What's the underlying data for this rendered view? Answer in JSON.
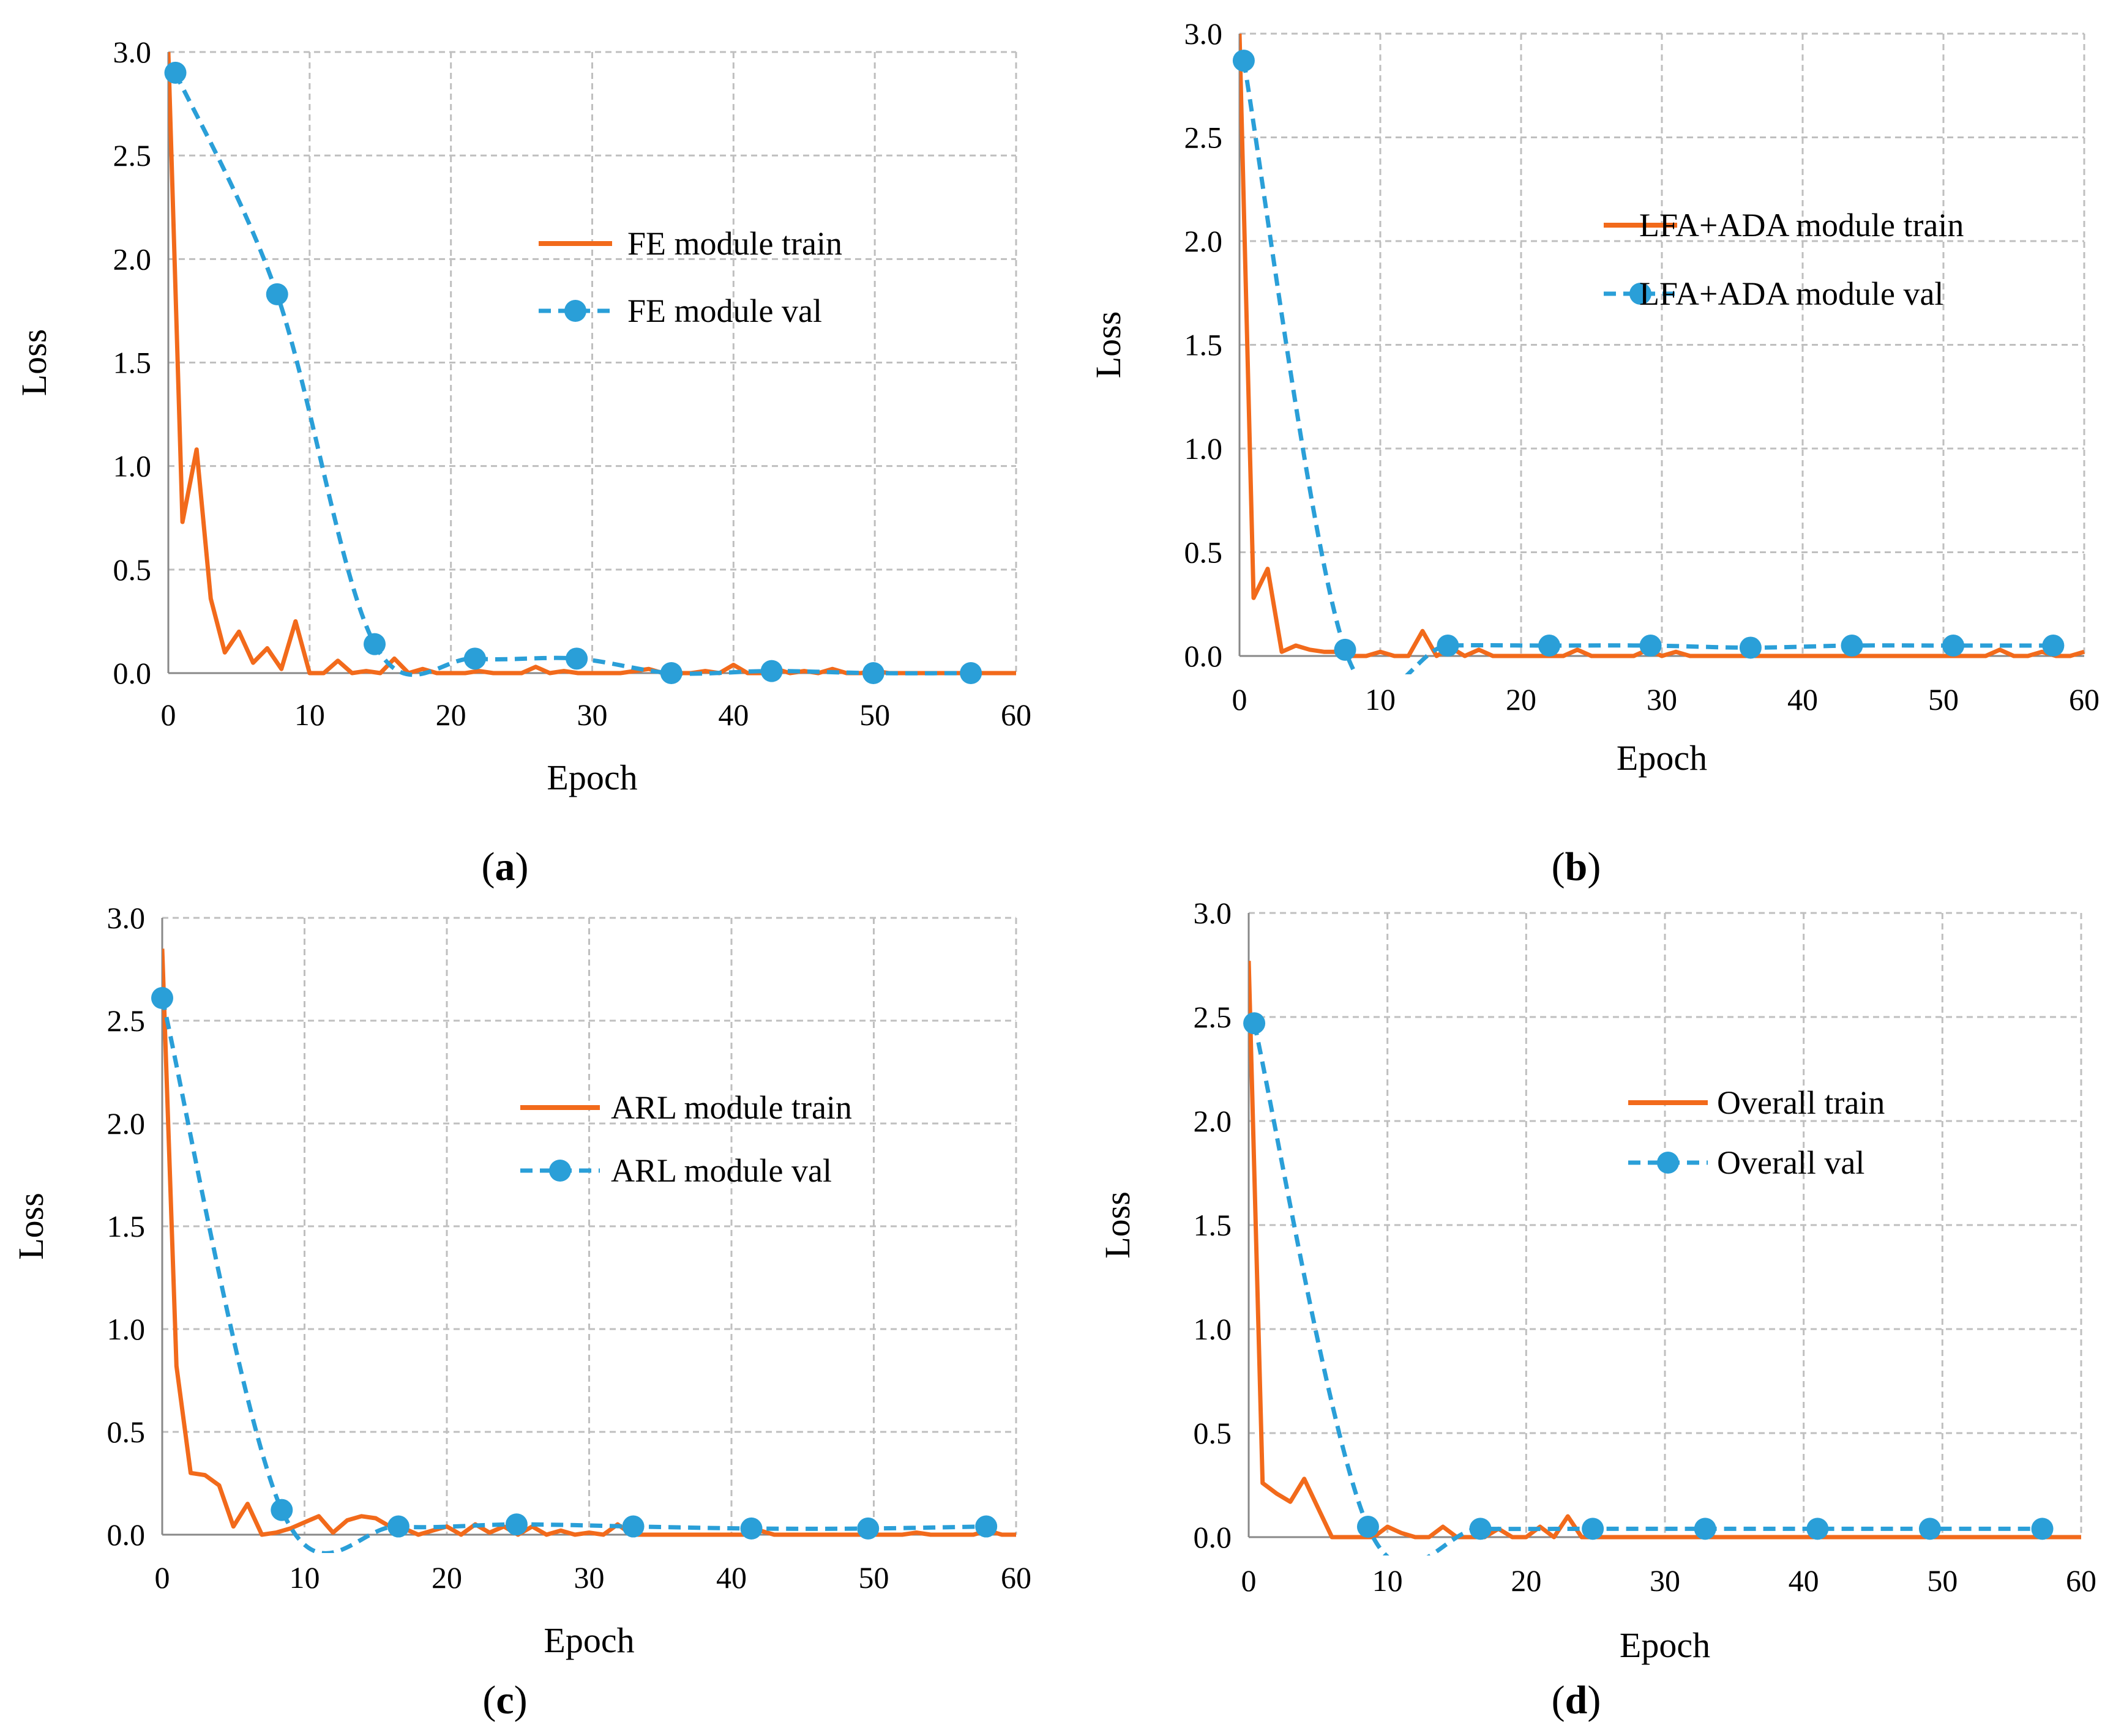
{
  "colors": {
    "train": "#F26A1B",
    "val": "#2A9FD8",
    "grid": "#BFBFBF",
    "axis": "#888888"
  },
  "chart_data": [
    {
      "type": "line",
      "panel": "a",
      "caption": "(a)",
      "caption_letter": "a",
      "xlabel": "Epoch",
      "ylabel": "Loss",
      "xlim": [
        0,
        60
      ],
      "ylim": [
        0,
        3
      ],
      "x_ticks": [
        "0",
        "10",
        "20",
        "30",
        "40",
        "50",
        "60"
      ],
      "y_ticks": [
        "0.0",
        "0.5",
        "1.0",
        "1.5",
        "2.0",
        "2.5",
        "3.0"
      ],
      "legend": "center-right",
      "series": [
        {
          "name": "FE module train",
          "style": "solid",
          "x": [
            0,
            1,
            2,
            3,
            4,
            5,
            6,
            7,
            8,
            9,
            10,
            11,
            12,
            13,
            14,
            15,
            16,
            17,
            18,
            19,
            20,
            21,
            22,
            23,
            24,
            25,
            26,
            27,
            28,
            29,
            30,
            31,
            32,
            33,
            34,
            35,
            36,
            37,
            38,
            39,
            40,
            41,
            42,
            43,
            44,
            45,
            46,
            47,
            48,
            49,
            50,
            51,
            52,
            53,
            54,
            55,
            56,
            57,
            58,
            59,
            60
          ],
          "values": [
            3.0,
            0.73,
            1.08,
            0.36,
            0.1,
            0.2,
            0.05,
            0.12,
            0.02,
            0.25,
            0.0,
            0.0,
            0.06,
            0.0,
            0.01,
            0.0,
            0.07,
            0.0,
            0.02,
            0.0,
            0.0,
            0.0,
            0.01,
            0.0,
            0.0,
            0.0,
            0.03,
            0.0,
            0.01,
            0.0,
            0.0,
            0.0,
            0.0,
            0.01,
            0.02,
            0.0,
            0.0,
            0.0,
            0.01,
            0.0,
            0.04,
            0.0,
            0.0,
            0.02,
            0.0,
            0.01,
            0.0,
            0.02,
            0.0,
            0.0,
            0.01,
            0.0,
            0.0,
            0.0,
            0.0,
            0.0,
            0.0,
            0.0,
            0.0,
            0.0,
            0.0
          ]
        },
        {
          "name": "FE module val",
          "style": "dashed-markers",
          "x": [
            0.5,
            7.7,
            14.6,
            21.7,
            28.9,
            35.6,
            42.7,
            49.9,
            56.8
          ],
          "values": [
            2.9,
            1.83,
            0.14,
            0.07,
            0.07,
            0.0,
            0.01,
            0.0,
            0.0
          ]
        }
      ]
    },
    {
      "type": "line",
      "panel": "b",
      "caption": "(b)",
      "caption_letter": "b",
      "xlabel": "Epoch",
      "ylabel": "Loss",
      "xlim": [
        0,
        60
      ],
      "ylim": [
        0,
        3
      ],
      "x_ticks": [
        "0",
        "10",
        "20",
        "30",
        "40",
        "50",
        "60"
      ],
      "y_ticks": [
        "0.0",
        "0.5",
        "1.0",
        "1.5",
        "2.0",
        "2.5",
        "3.0"
      ],
      "legend": "top-right",
      "series": [
        {
          "name": "LFA+ADA module train",
          "style": "solid",
          "x": [
            0,
            1,
            2,
            3,
            4,
            5,
            6,
            7,
            8,
            9,
            10,
            11,
            12,
            13,
            14,
            15,
            16,
            17,
            18,
            19,
            20,
            21,
            22,
            23,
            24,
            25,
            26,
            27,
            28,
            29,
            30,
            31,
            32,
            33,
            34,
            35,
            36,
            37,
            38,
            39,
            40,
            41,
            42,
            43,
            44,
            45,
            46,
            47,
            48,
            49,
            50,
            51,
            52,
            53,
            54,
            55,
            56,
            57,
            58,
            59,
            60
          ],
          "values": [
            3.0,
            0.28,
            0.42,
            0.02,
            0.05,
            0.03,
            0.02,
            0.02,
            0.0,
            0.0,
            0.02,
            0.0,
            0.0,
            0.12,
            0.0,
            0.04,
            0.0,
            0.03,
            0.0,
            0.0,
            0.0,
            0.0,
            0.0,
            0.0,
            0.03,
            0.0,
            0.0,
            0.0,
            0.0,
            0.03,
            0.0,
            0.02,
            0.0,
            0.0,
            0.0,
            0.0,
            0.0,
            0.0,
            0.0,
            0.0,
            0.0,
            0.0,
            0.0,
            0.0,
            0.0,
            0.0,
            0.0,
            0.0,
            0.0,
            0.0,
            0.0,
            0.0,
            0.0,
            0.0,
            0.03,
            0.0,
            0.0,
            0.02,
            0.0,
            0.0,
            0.02
          ]
        },
        {
          "name": "LFA+ADA module val",
          "style": "dashed-markers",
          "x": [
            0.3,
            7.5,
            14.8,
            22.0,
            29.2,
            36.3,
            43.5,
            50.7,
            57.8
          ],
          "values": [
            2.87,
            0.03,
            0.05,
            0.05,
            0.05,
            0.04,
            0.05,
            0.05,
            0.05
          ]
        }
      ]
    },
    {
      "type": "line",
      "panel": "c",
      "caption": "(c)",
      "caption_letter": "c",
      "xlabel": "Epoch",
      "ylabel": "Loss",
      "xlim": [
        0,
        60
      ],
      "ylim": [
        0,
        3
      ],
      "x_ticks": [
        "0",
        "10",
        "20",
        "30",
        "40",
        "50",
        "60"
      ],
      "y_ticks": [
        "0.0",
        "0.5",
        "1.0",
        "1.5",
        "2.0",
        "2.5",
        "3.0"
      ],
      "legend": "center-right",
      "series": [
        {
          "name": "ARL module train",
          "style": "solid",
          "x": [
            0,
            1,
            2,
            3,
            4,
            5,
            6,
            7,
            8,
            9,
            10,
            11,
            12,
            13,
            14,
            15,
            16,
            17,
            18,
            19,
            20,
            21,
            22,
            23,
            24,
            25,
            26,
            27,
            28,
            29,
            30,
            31,
            32,
            33,
            34,
            35,
            36,
            37,
            38,
            39,
            40,
            41,
            42,
            43,
            44,
            45,
            46,
            47,
            48,
            49,
            50,
            51,
            52,
            53,
            54,
            55,
            56,
            57,
            58,
            59,
            60
          ],
          "values": [
            2.85,
            0.82,
            0.3,
            0.29,
            0.24,
            0.04,
            0.15,
            0.0,
            0.01,
            0.03,
            0.06,
            0.09,
            0.01,
            0.07,
            0.09,
            0.08,
            0.04,
            0.03,
            0.0,
            0.02,
            0.04,
            0.0,
            0.05,
            0.01,
            0.04,
            0.0,
            0.04,
            0.0,
            0.02,
            0.0,
            0.01,
            0.0,
            0.05,
            0.0,
            0.0,
            0.0,
            0.0,
            0.0,
            0.0,
            0.0,
            0.0,
            0.0,
            0.02,
            0.0,
            0.0,
            0.0,
            0.0,
            0.0,
            0.0,
            0.0,
            0.0,
            0.0,
            0.0,
            0.01,
            0.0,
            0.0,
            0.0,
            0.0,
            0.02,
            0.0,
            0.0
          ]
        },
        {
          "name": "ARL module val",
          "style": "dashed-markers",
          "x": [
            0.0,
            8.4,
            16.6,
            24.9,
            33.1,
            41.4,
            49.6,
            57.9
          ],
          "values": [
            2.61,
            0.12,
            0.04,
            0.05,
            0.04,
            0.03,
            0.03,
            0.04
          ]
        }
      ]
    },
    {
      "type": "line",
      "panel": "d",
      "caption": "(d)",
      "caption_letter": "d",
      "xlabel": "Epoch",
      "ylabel": "Loss",
      "xlim": [
        0,
        60
      ],
      "ylim": [
        0,
        3
      ],
      "x_ticks": [
        "0",
        "10",
        "20",
        "30",
        "40",
        "50",
        "60"
      ],
      "y_ticks": [
        "0.0",
        "0.5",
        "1.0",
        "1.5",
        "2.0",
        "2.5",
        "3.0"
      ],
      "legend": "center-right",
      "series": [
        {
          "name": "Overall train",
          "style": "solid",
          "x": [
            0,
            1,
            2,
            3,
            4,
            5,
            6,
            7,
            8,
            9,
            10,
            11,
            12,
            13,
            14,
            15,
            16,
            17,
            18,
            19,
            20,
            21,
            22,
            23,
            24,
            25,
            26,
            27,
            28,
            29,
            30,
            31,
            32,
            33,
            34,
            35,
            36,
            37,
            38,
            39,
            40,
            41,
            42,
            43,
            44,
            45,
            46,
            47,
            48,
            49,
            50,
            51,
            52,
            53,
            54,
            55,
            56,
            57,
            58,
            59,
            60
          ],
          "values": [
            2.77,
            0.26,
            0.21,
            0.17,
            0.28,
            0.14,
            0.0,
            0.0,
            0.0,
            0.0,
            0.05,
            0.02,
            0.0,
            0.0,
            0.05,
            0.0,
            0.0,
            0.0,
            0.04,
            0.0,
            0.0,
            0.05,
            0.0,
            0.1,
            0.0,
            0.0,
            0.0,
            0.0,
            0.0,
            0.0,
            0.0,
            0.0,
            0.0,
            0.0,
            0.0,
            0.0,
            0.0,
            0.0,
            0.0,
            0.0,
            0.0,
            0.0,
            0.0,
            0.0,
            0.0,
            0.0,
            0.0,
            0.0,
            0.0,
            0.0,
            0.0,
            0.0,
            0.0,
            0.0,
            0.0,
            0.0,
            0.0,
            0.0,
            0.0,
            0.0,
            0.0
          ]
        },
        {
          "name": "Overall val",
          "style": "dashed-markers",
          "x": [
            0.4,
            8.6,
            16.7,
            24.8,
            32.9,
            41.0,
            49.1,
            57.2
          ],
          "values": [
            2.47,
            0.05,
            0.04,
            0.04,
            0.04,
            0.04,
            0.04,
            0.04
          ]
        }
      ]
    }
  ]
}
